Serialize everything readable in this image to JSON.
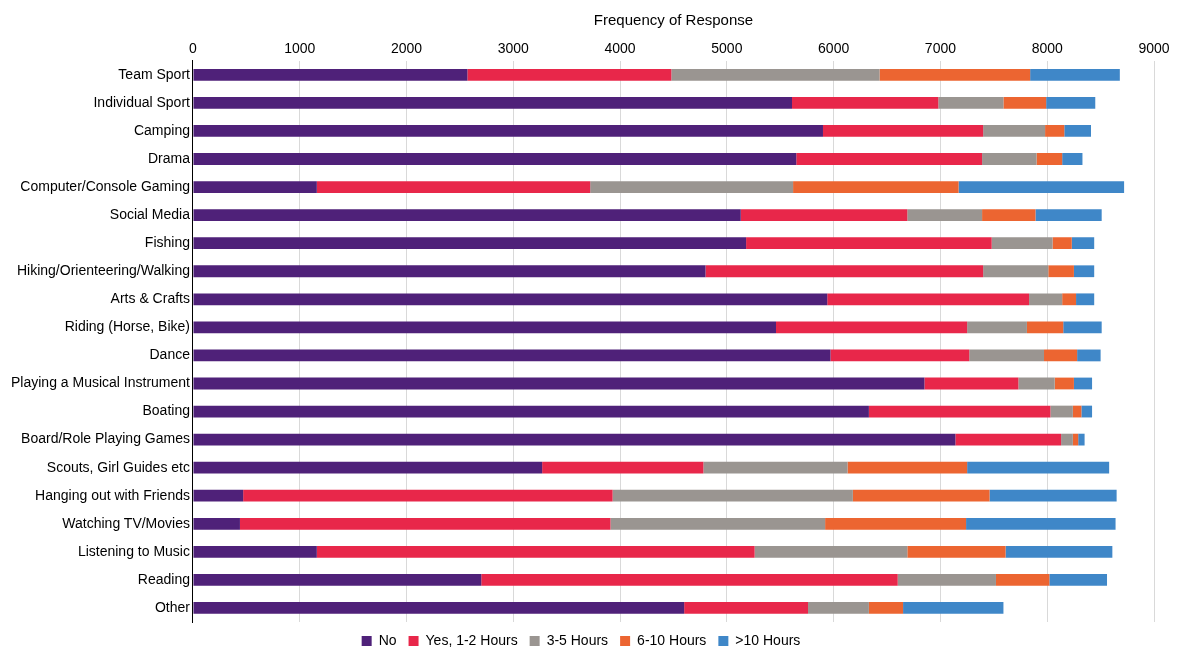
{
  "chart_data": {
    "type": "bar",
    "orientation": "horizontal",
    "stacked": true,
    "xlabel": "Frequency of Response",
    "categories": [
      "Team Sport",
      "Individual Sport",
      "Camping",
      "Drama",
      "Computer/Console Gaming",
      "Social Media",
      "Fishing",
      "Hiking/Orienteering/Walking",
      "Arts & Crafts",
      "Riding (Horse, Bike)",
      "Dance",
      "Playing a Musical Instrument",
      "Boating",
      "Board/Role Playing Games",
      "Scouts, Girl Guides etc",
      "Hanging out with Friends",
      "Watching TV/Movies",
      "Listening to Music",
      "Reading",
      "Other"
    ],
    "series": [
      {
        "name": "No",
        "color": "#4f2179",
        "values": [
          2570,
          5610,
          5900,
          5650,
          1160,
          5130,
          5180,
          4800,
          5940,
          5460,
          5970,
          6850,
          6330,
          7140,
          3270,
          470,
          440,
          1160,
          2700,
          4600
        ]
      },
      {
        "name": "Yes, 1-2 Hours",
        "color": "#e8274a",
        "values": [
          1910,
          1370,
          1500,
          1740,
          2560,
          1560,
          2300,
          2600,
          1890,
          1790,
          1300,
          880,
          1700,
          990,
          1510,
          3460,
          3470,
          4100,
          3900,
          1160
        ]
      },
      {
        "name": "3-5 Hours",
        "color": "#9a9591",
        "values": [
          1950,
          610,
          580,
          510,
          1900,
          700,
          570,
          610,
          310,
          560,
          700,
          340,
          210,
          110,
          1350,
          2250,
          2010,
          1430,
          920,
          570
        ]
      },
      {
        "name": "6-10 Hours",
        "color": "#ec6531",
        "values": [
          1410,
          400,
          180,
          240,
          1550,
          500,
          180,
          240,
          130,
          340,
          310,
          180,
          80,
          50,
          1120,
          1280,
          1320,
          920,
          500,
          320
        ]
      },
      {
        "name": ">10 Hours",
        "color": "#3f87c8",
        "values": [
          840,
          460,
          250,
          190,
          1550,
          620,
          210,
          190,
          170,
          360,
          220,
          170,
          100,
          60,
          1330,
          1190,
          1400,
          1000,
          540,
          940
        ]
      }
    ],
    "xlim": [
      0,
      9000
    ],
    "xticks": [
      0,
      1000,
      2000,
      3000,
      4000,
      5000,
      6000,
      7000,
      8000,
      9000
    ],
    "grid": "x",
    "legend": "bottom"
  }
}
